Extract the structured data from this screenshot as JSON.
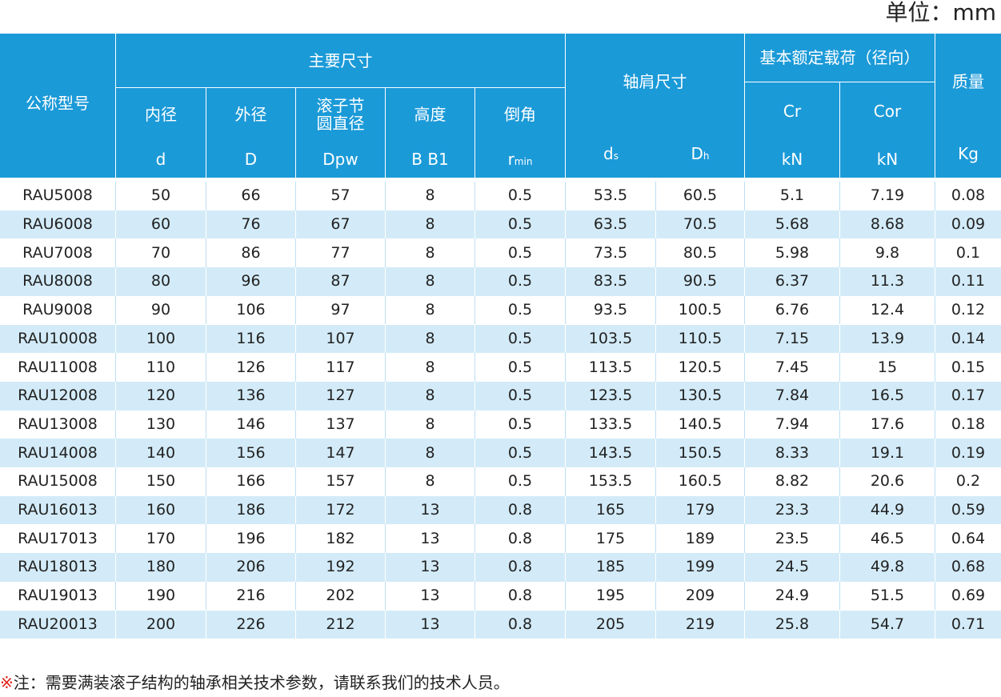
{
  "unit": "单位：mm",
  "table": {
    "header": {
      "model": "公称型号",
      "groups": [
        "主要尺寸",
        "轴肩尺寸",
        "基本额定载荷（径向）",
        "质量"
      ],
      "columns": [
        {
          "name": [
            "内径"
          ],
          "symbol": "d"
        },
        {
          "name": [
            "外径"
          ],
          "symbol": "D"
        },
        {
          "name": [
            "滚子节",
            "圆直径"
          ],
          "symbol": "Dpw"
        },
        {
          "name": [
            "高度"
          ],
          "symbol": "B  B1"
        },
        {
          "name": [
            "倒角"
          ],
          "symbol": "r",
          "sub": "min"
        },
        {
          "symbol": "d",
          "sub": "s"
        },
        {
          "symbol": "D",
          "sub": "h"
        },
        {
          "name": [
            "Cr"
          ],
          "symbol": "kN"
        },
        {
          "name": [
            "Cor"
          ],
          "symbol": "kN"
        },
        {
          "symbol": "Kg"
        }
      ]
    },
    "rows": [
      [
        "RAU5008",
        "50",
        "66",
        "57",
        "8",
        "0.5",
        "53.5",
        "60.5",
        "5.1",
        "7.19",
        "0.08"
      ],
      [
        "RAU6008",
        "60",
        "76",
        "67",
        "8",
        "0.5",
        "63.5",
        "70.5",
        "5.68",
        "8.68",
        "0.09"
      ],
      [
        "RAU7008",
        "70",
        "86",
        "77",
        "8",
        "0.5",
        "73.5",
        "80.5",
        "5.98",
        "9.8",
        "0.1"
      ],
      [
        "RAU8008",
        "80",
        "96",
        "87",
        "8",
        "0.5",
        "83.5",
        "90.5",
        "6.37",
        "11.3",
        "0.11"
      ],
      [
        "RAU9008",
        "90",
        "106",
        "97",
        "8",
        "0.5",
        "93.5",
        "100.5",
        "6.76",
        "12.4",
        "0.12"
      ],
      [
        "RAU10008",
        "100",
        "116",
        "107",
        "8",
        "0.5",
        "103.5",
        "110.5",
        "7.15",
        "13.9",
        "0.14"
      ],
      [
        "RAU11008",
        "110",
        "126",
        "117",
        "8",
        "0.5",
        "113.5",
        "120.5",
        "7.45",
        "15",
        "0.15"
      ],
      [
        "RAU12008",
        "120",
        "136",
        "127",
        "8",
        "0.5",
        "123.5",
        "130.5",
        "7.84",
        "16.5",
        "0.17"
      ],
      [
        "RAU13008",
        "130",
        "146",
        "137",
        "8",
        "0.5",
        "133.5",
        "140.5",
        "7.94",
        "17.6",
        "0.18"
      ],
      [
        "RAU14008",
        "140",
        "156",
        "147",
        "8",
        "0.5",
        "143.5",
        "150.5",
        "8.33",
        "19.1",
        "0.19"
      ],
      [
        "RAU15008",
        "150",
        "166",
        "157",
        "8",
        "0.5",
        "153.5",
        "160.5",
        "8.82",
        "20.6",
        "0.2"
      ],
      [
        "RAU16013",
        "160",
        "186",
        "172",
        "13",
        "0.8",
        "165",
        "179",
        "23.3",
        "44.9",
        "0.59"
      ],
      [
        "RAU17013",
        "170",
        "196",
        "182",
        "13",
        "0.8",
        "175",
        "189",
        "23.5",
        "46.5",
        "0.64"
      ],
      [
        "RAU18013",
        "180",
        "206",
        "192",
        "13",
        "0.8",
        "185",
        "199",
        "24.5",
        "49.8",
        "0.68"
      ],
      [
        "RAU19013",
        "190",
        "216",
        "202",
        "13",
        "0.8",
        "195",
        "209",
        "24.9",
        "51.5",
        "0.69"
      ],
      [
        "RAU20013",
        "200",
        "226",
        "212",
        "13",
        "0.8",
        "205",
        "219",
        "25.8",
        "54.7",
        "0.71"
      ]
    ]
  },
  "note": {
    "mark": "※",
    "text": "注：需要满装滚子结构的轴承相关技术参数，请联系我们的技术人员。"
  }
}
